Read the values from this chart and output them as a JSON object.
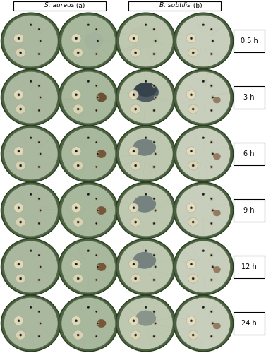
{
  "title_left": "S. aureus (a)",
  "title_right": "B. subtilis (b)",
  "time_labels": [
    "0.5 h",
    "3 h",
    "6 h",
    "9 h",
    "12 h",
    "24 h"
  ],
  "background_color": "#ffffff",
  "fig_width": 3.77,
  "fig_height": 5.0,
  "dpi": 100,
  "rows": 6,
  "cols": 4,
  "dish_colors": {
    "col0": "#b8c4a8",
    "col1": "#b0bca0",
    "col2": "#c8cebc",
    "col3": "#c8cebc"
  },
  "dish_edge": "#4a6848",
  "dish_rim": "#6a8060"
}
